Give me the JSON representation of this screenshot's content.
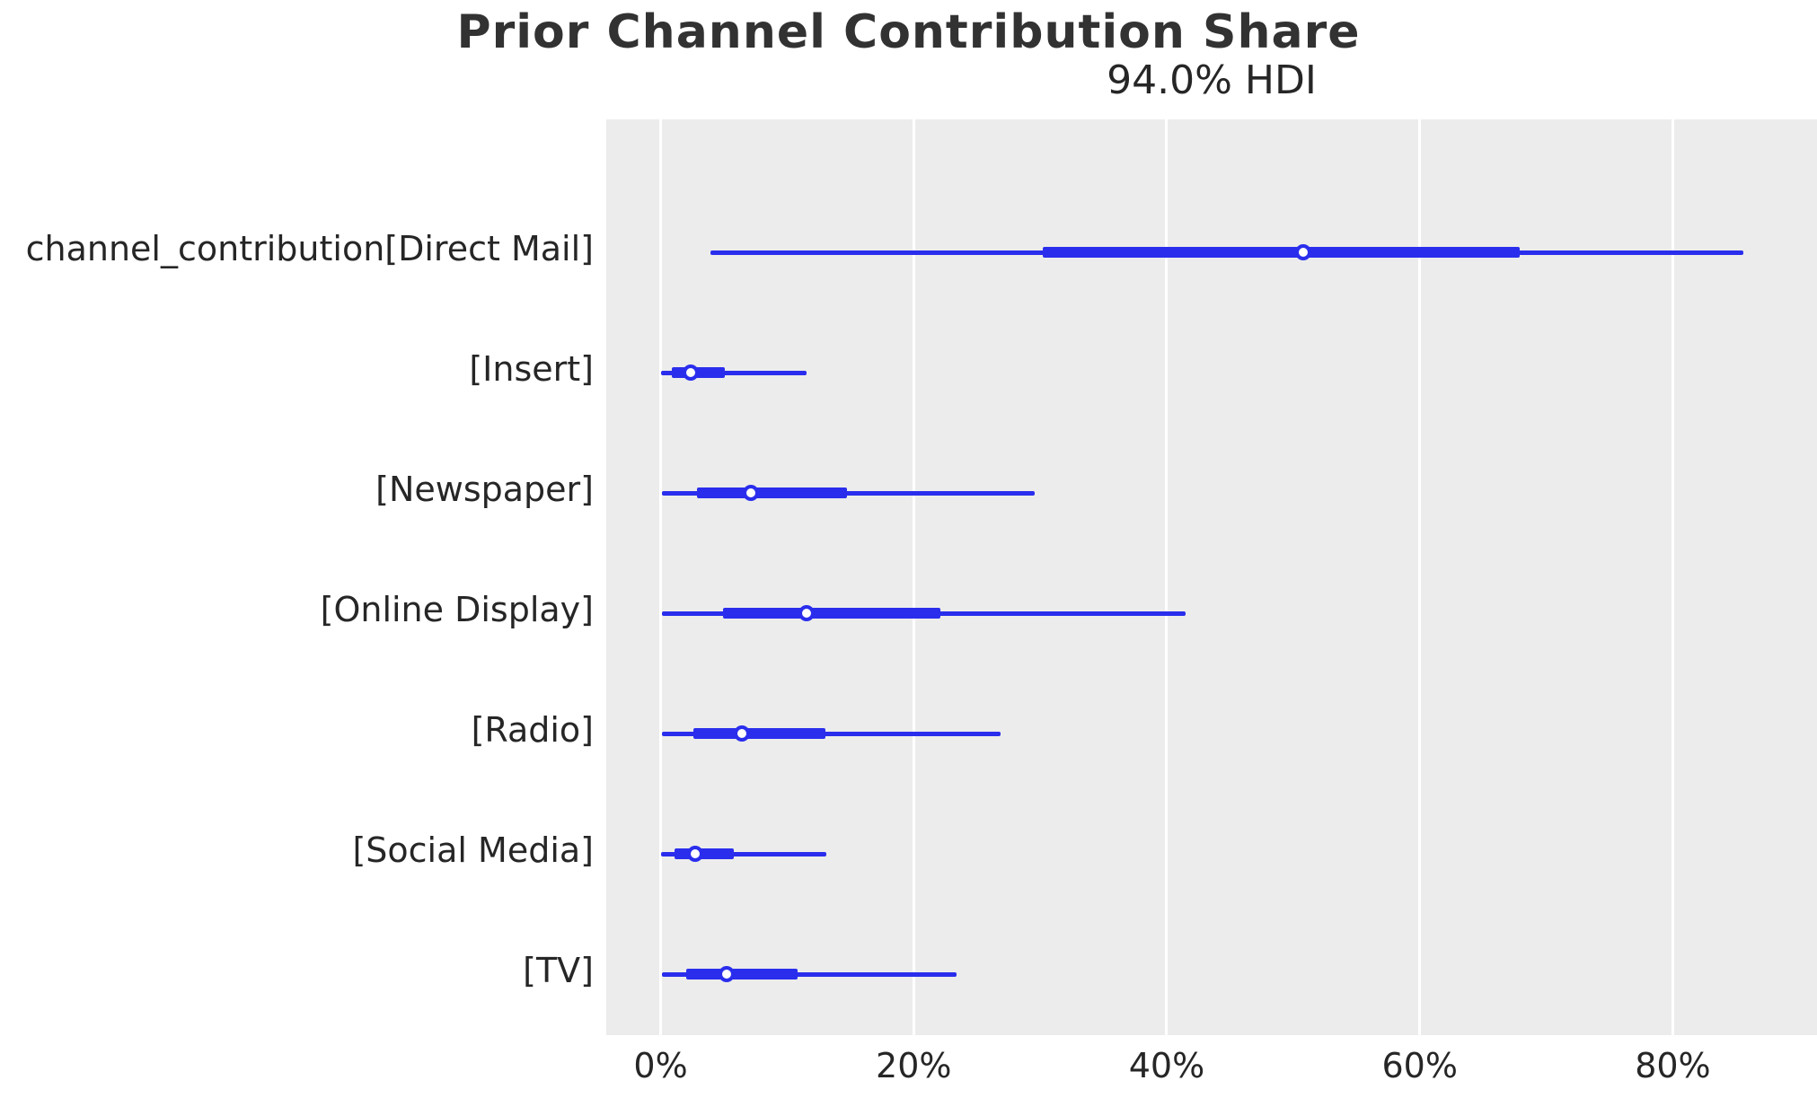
{
  "chart_data": {
    "type": "forest",
    "title": "Prior Channel Contribution Share",
    "subtitle": "94.0% HDI",
    "xlabel": "",
    "ylabel": "",
    "unit": "percent",
    "xlim": [
      -4.3,
      91.4
    ],
    "tick_values": [
      0,
      20,
      40,
      60,
      80
    ],
    "tick_labels": [
      "0%",
      "20%",
      "40%",
      "60%",
      "80%"
    ],
    "grid": "vertical-white-on-gray",
    "legend": "none",
    "rows": [
      {
        "label": "channel_contribution[Direct Mail]",
        "hdi_low": 3.9,
        "quartile_low": 30.2,
        "median": 50.8,
        "quartile_high": 67.9,
        "hdi_high": 85.6
      },
      {
        "label": "[Insert]",
        "hdi_low": 0.05,
        "quartile_low": 0.9,
        "median": 2.4,
        "quartile_high": 5.1,
        "hdi_high": 11.5
      },
      {
        "label": "[Newspaper]",
        "hdi_low": 0.1,
        "quartile_low": 2.9,
        "median": 7.1,
        "quartile_high": 14.7,
        "hdi_high": 29.6
      },
      {
        "label": "[Online Display]",
        "hdi_low": 0.1,
        "quartile_low": 4.9,
        "median": 11.5,
        "quartile_high": 22.1,
        "hdi_high": 41.5
      },
      {
        "label": "[Radio]",
        "hdi_low": 0.1,
        "quartile_low": 2.6,
        "median": 6.4,
        "quartile_high": 13.0,
        "hdi_high": 26.9
      },
      {
        "label": "[Social Media]",
        "hdi_low": 0.05,
        "quartile_low": 1.1,
        "median": 2.7,
        "quartile_high": 5.8,
        "hdi_high": 13.1
      },
      {
        "label": "[TV]",
        "hdi_low": 0.1,
        "quartile_low": 2.0,
        "median": 5.2,
        "quartile_high": 10.8,
        "hdi_high": 23.4
      }
    ],
    "colors": {
      "interval": "#2a2eec",
      "median_fill": "#ffffff",
      "plot_background": "#ececec",
      "gridline": "#ffffff",
      "text": "#262626"
    }
  }
}
